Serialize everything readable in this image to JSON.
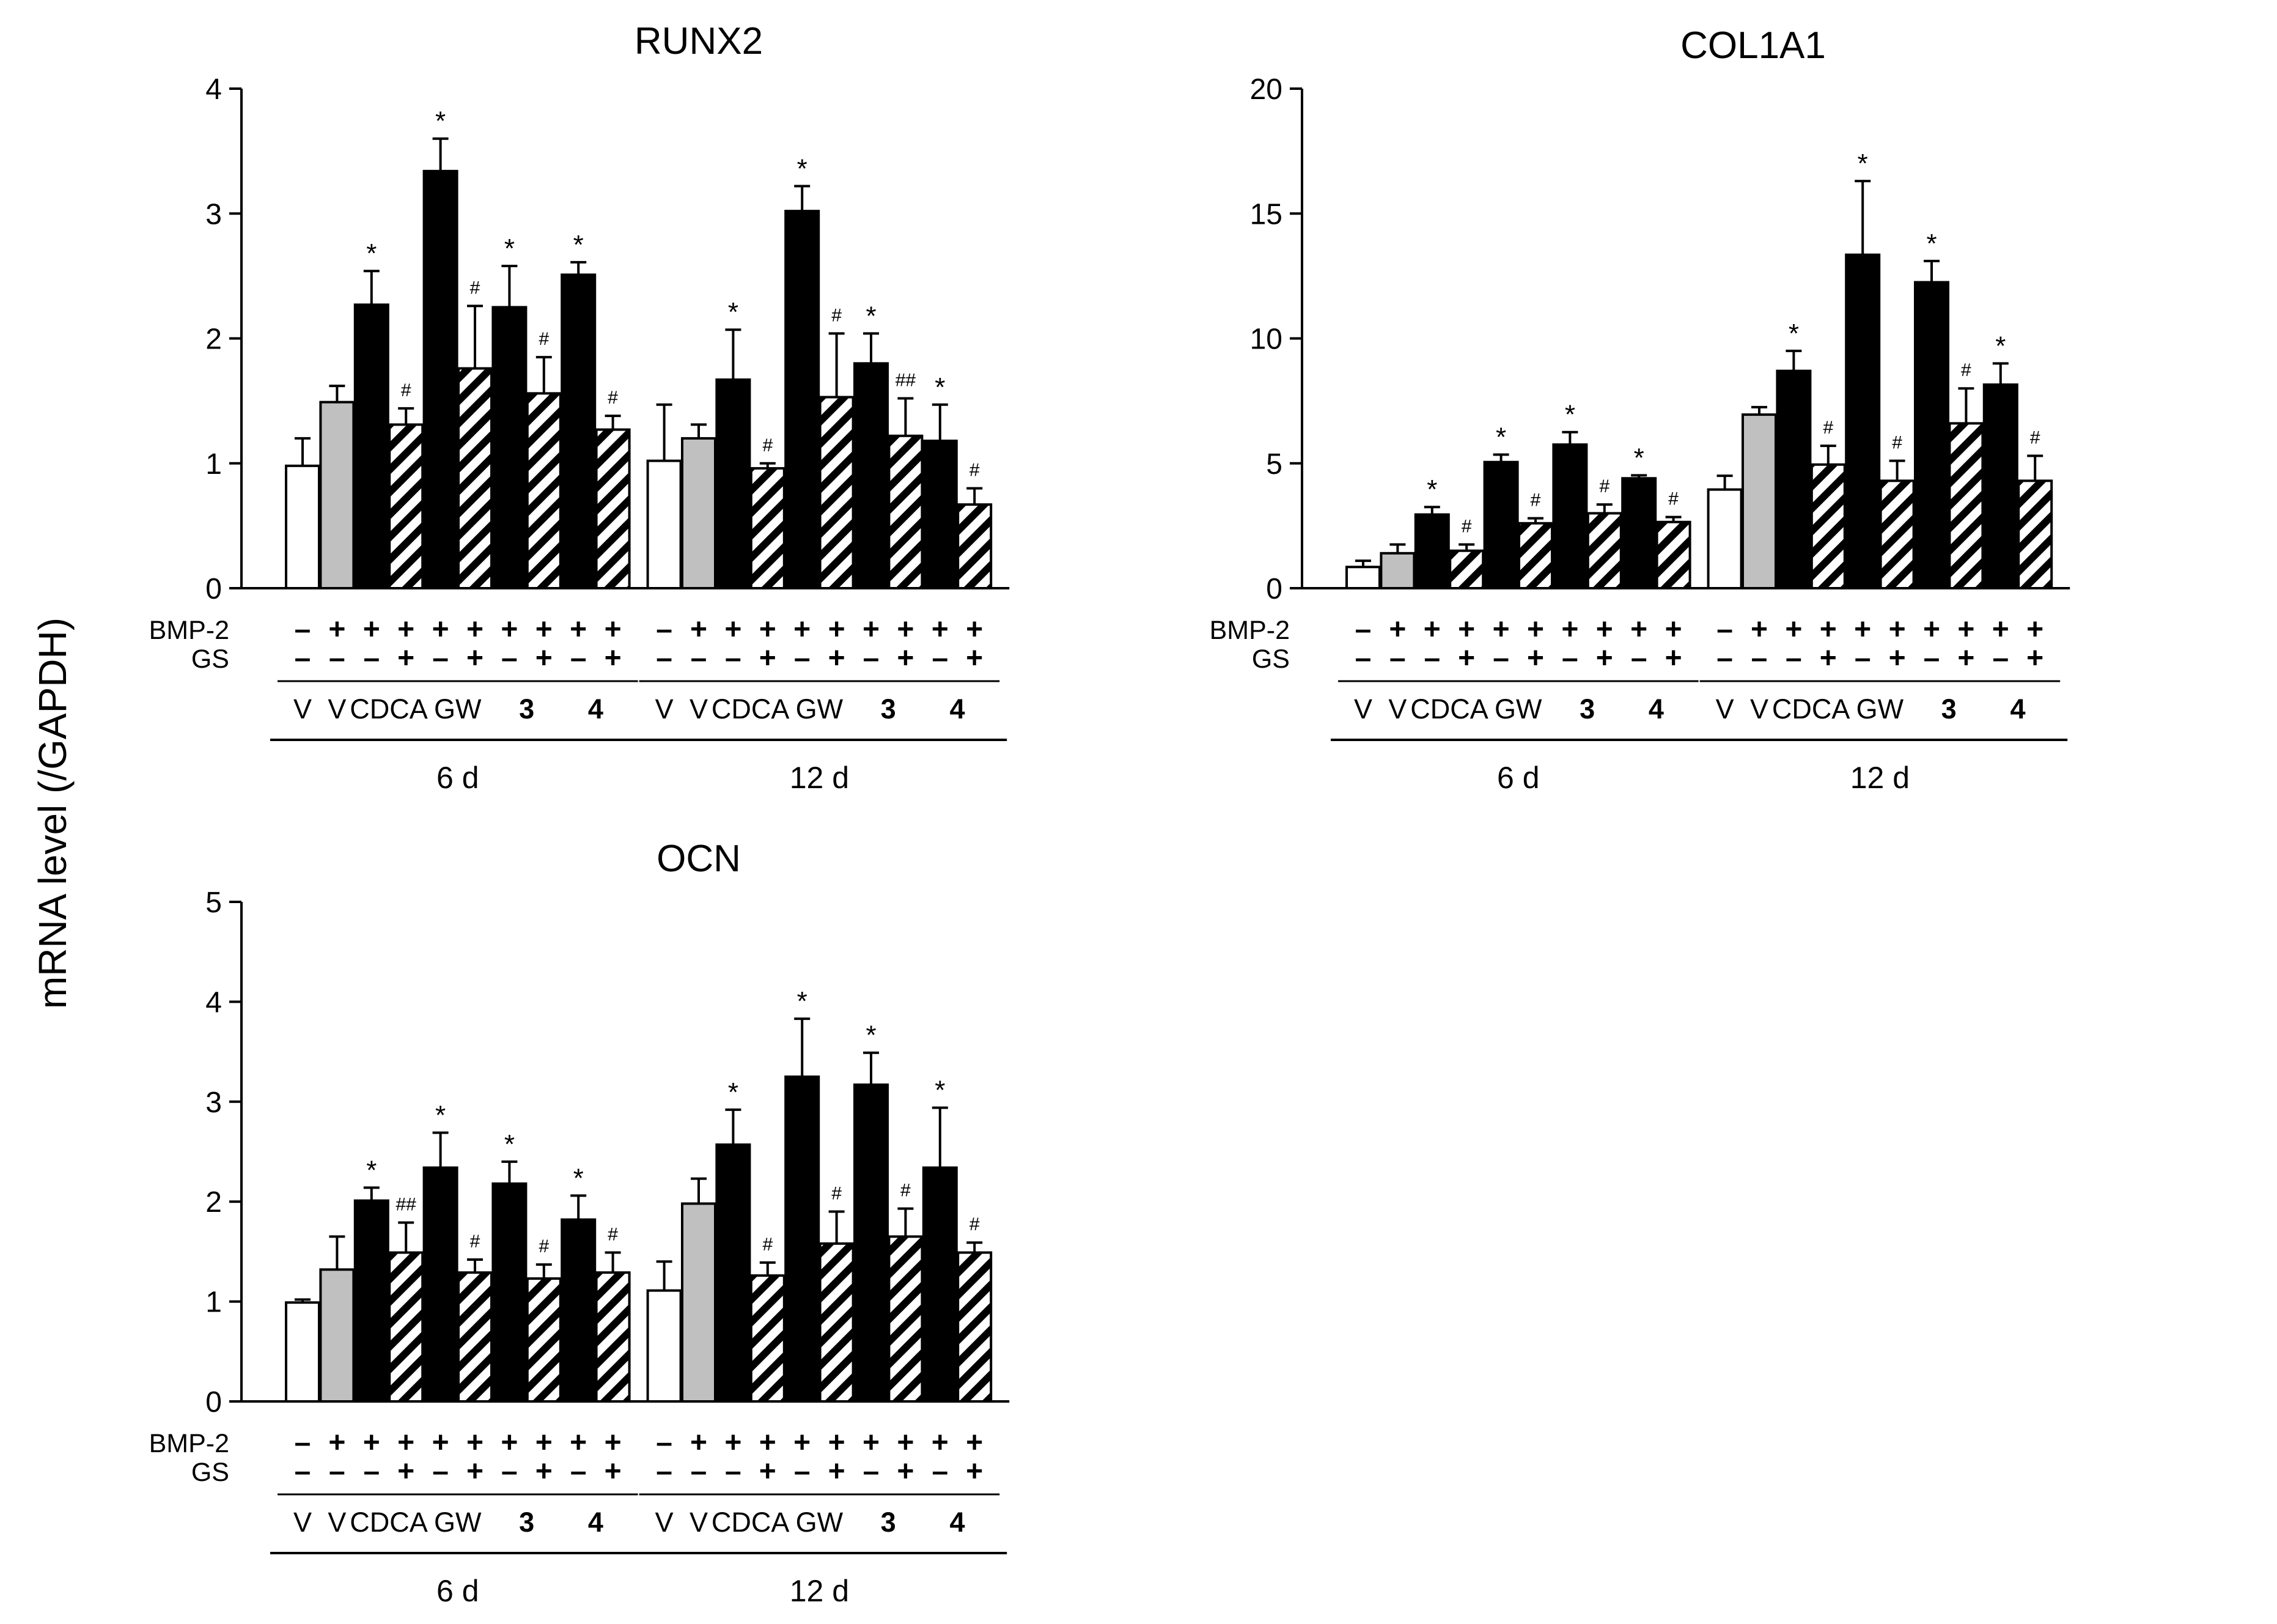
{
  "ylabel": "mRNA level (/GAPDH)",
  "row_labels": {
    "bmp2": "BMP-2",
    "gs": "GS"
  },
  "sign_plus": "+",
  "sign_minus": "–",
  "conditions": [
    {
      "bmp2": "–",
      "gs": "–",
      "agent": "V",
      "bold": false
    },
    {
      "bmp2": "+",
      "gs": "–",
      "agent": "V",
      "bold": false
    },
    {
      "bmp2": "+",
      "gs": "–",
      "agent": "CDCA",
      "bold": false
    },
    {
      "bmp2": "+",
      "gs": "+",
      "agent": "CDCA",
      "bold": false
    },
    {
      "bmp2": "+",
      "gs": "–",
      "agent": "GW",
      "bold": false
    },
    {
      "bmp2": "+",
      "gs": "+",
      "agent": "GW",
      "bold": false
    },
    {
      "bmp2": "+",
      "gs": "–",
      "agent": "3",
      "bold": true
    },
    {
      "bmp2": "+",
      "gs": "+",
      "agent": "3",
      "bold": true
    },
    {
      "bmp2": "+",
      "gs": "–",
      "agent": "4",
      "bold": true
    },
    {
      "bmp2": "+",
      "gs": "+",
      "agent": "4",
      "bold": true
    }
  ],
  "bar_styles": [
    "white",
    "gray",
    "black",
    "hatched",
    "black",
    "hatched",
    "black",
    "hatched",
    "black",
    "hatched"
  ],
  "colors": {
    "black": "#000000",
    "gray": "#c0c0c0",
    "white": "#ffffff"
  },
  "chart_data": [
    {
      "type": "bar",
      "title": "RUNX2",
      "ylabel": "mRNA level (/GAPDH)",
      "ylim": [
        0,
        4
      ],
      "yticks": [
        0,
        1,
        2,
        3,
        4
      ],
      "groups": [
        "6 d",
        "12 d"
      ],
      "series": [
        {
          "name": "6 d",
          "values": [
            0.98,
            1.49,
            2.27,
            1.31,
            3.34,
            1.76,
            2.25,
            1.56,
            2.51,
            1.27
          ],
          "errors": [
            0.22,
            0.13,
            0.27,
            0.13,
            0.26,
            0.5,
            0.33,
            0.29,
            0.1,
            0.11
          ],
          "annotations": [
            "",
            "",
            "*",
            "#",
            "*",
            "#",
            "*",
            "#",
            "*",
            "#"
          ]
        },
        {
          "name": "12 d",
          "values": [
            1.02,
            1.2,
            1.67,
            0.96,
            3.02,
            1.53,
            1.8,
            1.22,
            1.18,
            0.67
          ],
          "errors": [
            0.45,
            0.11,
            0.4,
            0.04,
            0.2,
            0.51,
            0.24,
            0.3,
            0.29,
            0.13
          ],
          "annotations": [
            "",
            "",
            "*",
            "#",
            "*",
            "#",
            "*",
            "##",
            "*",
            "#"
          ]
        }
      ]
    },
    {
      "type": "bar",
      "title": "COL1A1",
      "ylabel": "mRNA level (/GAPDH)",
      "ylim": [
        0,
        20
      ],
      "yticks": [
        0,
        5,
        10,
        15,
        20
      ],
      "groups": [
        "6 d",
        "12 d"
      ],
      "series": [
        {
          "name": "6 d",
          "values": [
            0.85,
            1.4,
            2.95,
            1.5,
            5.05,
            2.6,
            5.75,
            3.0,
            4.4,
            2.65
          ],
          "errors": [
            0.25,
            0.35,
            0.3,
            0.25,
            0.3,
            0.2,
            0.5,
            0.35,
            0.12,
            0.2
          ],
          "annotations": [
            "",
            "",
            "*",
            "#",
            "*",
            "#",
            "*",
            "#",
            "*",
            "#"
          ]
        },
        {
          "name": "12 d",
          "values": [
            3.95,
            6.95,
            8.7,
            4.95,
            13.35,
            4.3,
            12.25,
            6.6,
            8.15,
            4.3
          ],
          "errors": [
            0.55,
            0.3,
            0.8,
            0.75,
            2.95,
            0.8,
            0.85,
            1.4,
            0.85,
            1.0
          ],
          "annotations": [
            "",
            "",
            "*",
            "#",
            "*",
            "#",
            "*",
            "#",
            "*",
            "#"
          ]
        }
      ]
    },
    {
      "type": "bar",
      "title": "OCN",
      "ylabel": "mRNA level (/GAPDH)",
      "ylim": [
        0,
        5
      ],
      "yticks": [
        0,
        1,
        2,
        3,
        4,
        5
      ],
      "groups": [
        "6 d",
        "12 d"
      ],
      "series": [
        {
          "name": "6 d",
          "values": [
            0.99,
            1.32,
            2.01,
            1.49,
            2.34,
            1.29,
            2.18,
            1.23,
            1.82,
            1.29
          ],
          "errors": [
            0.03,
            0.33,
            0.13,
            0.3,
            0.35,
            0.13,
            0.22,
            0.14,
            0.24,
            0.2
          ],
          "annotations": [
            "",
            "",
            "*",
            "##",
            "*",
            "#",
            "*",
            "#",
            "*",
            "#"
          ]
        },
        {
          "name": "12 d",
          "values": [
            1.11,
            1.98,
            2.57,
            1.26,
            3.25,
            1.58,
            3.17,
            1.65,
            2.34,
            1.49
          ],
          "errors": [
            0.29,
            0.25,
            0.35,
            0.13,
            0.58,
            0.32,
            0.32,
            0.28,
            0.6,
            0.1
          ],
          "annotations": [
            "",
            "",
            "*",
            "#",
            "*",
            "#",
            "*",
            "#",
            "*",
            "#"
          ]
        }
      ]
    }
  ]
}
